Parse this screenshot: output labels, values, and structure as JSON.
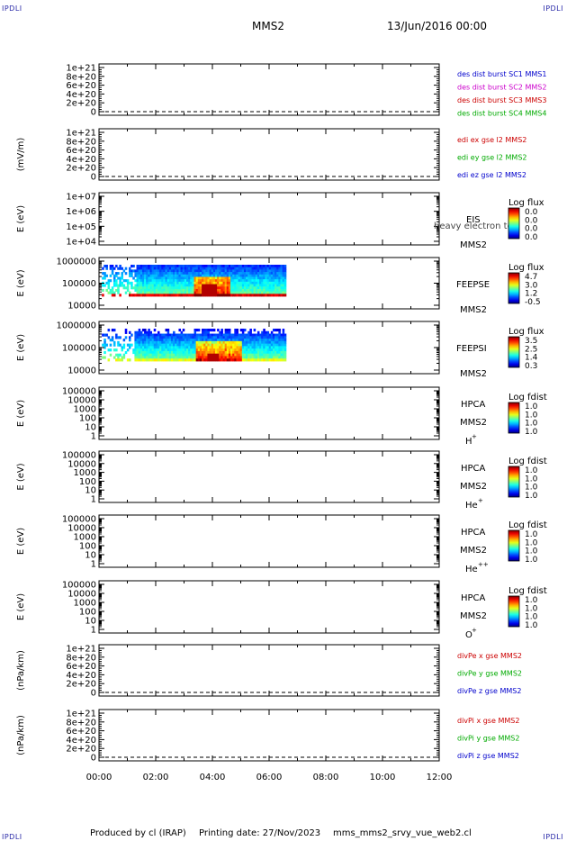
{
  "header": {
    "corner_label": "IPDLI",
    "mission": "MMS2",
    "datetime": "13/Jun/2016 00:00"
  },
  "footer": {
    "produced_by": "Produced by cl (IRAP)",
    "printing_date": "Printing date: 27/Nov/2023",
    "script_name": "mms_mms2_srvy_vue_web2.cl"
  },
  "chart_data": [
    {
      "type": "line",
      "ylabel": "",
      "ticks": [
        "1e+21",
        "8e+20",
        "6e+20",
        "4e+20",
        "2e+20",
        "0"
      ],
      "ylim": [
        0,
        1e+21
      ],
      "legend": [
        {
          "name": "des dist burst SC1 MMS1",
          "color": "#0000cc"
        },
        {
          "name": "des dist burst SC2 MMS2",
          "color": "#cc00cc"
        },
        {
          "name": "des dist burst SC3 MMS3",
          "color": "#cc0000"
        },
        {
          "name": "des dist burst SC4 MMS4",
          "color": "#00aa00"
        }
      ]
    },
    {
      "type": "line",
      "ylabel": "(mV/m)",
      "ticks": [
        "1e+21",
        "8e+20",
        "6e+20",
        "4e+20",
        "2e+20",
        "0"
      ],
      "ylim": [
        0,
        1e+21
      ],
      "legend": [
        {
          "name": "edi ex gse l2 MMS2",
          "color": "#cc0000"
        },
        {
          "name": "edi ey gse l2 MMS2",
          "color": "#00aa00"
        },
        {
          "name": "edi ez gse l2 MMS2",
          "color": "#0000cc"
        }
      ]
    },
    {
      "type": "heatmap",
      "ylabel": "E (eV)",
      "ticks": [
        "1e+07",
        "1e+06",
        "1e+05",
        "1e+04"
      ],
      "ylim": [
        10000,
        10000000
      ],
      "scale": "log",
      "instrument": "EIS",
      "overlay_text": "heavy electron to",
      "spacecraft": "MMS2",
      "colorbar_title": "Log flux",
      "colorbar_ticks": [
        "0.0",
        "0.0",
        "0.0",
        "0.0"
      ]
    },
    {
      "type": "heatmap",
      "ylabel": "E (eV)",
      "ticks": [
        "1000000",
        "100000",
        "10000"
      ],
      "ylim": [
        10000,
        1000000
      ],
      "scale": "log",
      "instrument": "FEEPSE",
      "spacecraft": "MMS2",
      "colorbar_title": "Log flux",
      "colorbar_ticks": [
        "4.7",
        "3.0",
        "1.2",
        "-0.5"
      ],
      "data_extent_hours": [
        0.1,
        6.6
      ]
    },
    {
      "type": "heatmap",
      "ylabel": "E (eV)",
      "ticks": [
        "1000000",
        "100000",
        "10000"
      ],
      "ylim": [
        10000,
        1000000
      ],
      "scale": "log",
      "instrument": "FEEPSI",
      "spacecraft": "MMS2",
      "colorbar_title": "Log flux",
      "colorbar_ticks": [
        "3.5",
        "2.5",
        "1.4",
        "0.3"
      ],
      "data_extent_hours": [
        0.1,
        6.6
      ]
    },
    {
      "type": "heatmap",
      "ylabel": "E (eV)",
      "ticks": [
        "100000",
        "10000",
        "1000",
        "100",
        "10",
        "1"
      ],
      "ylim": [
        1,
        100000
      ],
      "scale": "log",
      "instrument": "HPCA",
      "spacecraft": "MMS2",
      "species": "H",
      "species_sup": "+",
      "colorbar_title": "Log fdist",
      "colorbar_ticks": [
        "1.0",
        "1.0",
        "1.0",
        "1.0"
      ]
    },
    {
      "type": "heatmap",
      "ylabel": "E (eV)",
      "ticks": [
        "100000",
        "10000",
        "1000",
        "100",
        "10",
        "1"
      ],
      "ylim": [
        1,
        100000
      ],
      "scale": "log",
      "instrument": "HPCA",
      "spacecraft": "MMS2",
      "species": "He",
      "species_sup": "+",
      "colorbar_title": "Log fdist",
      "colorbar_ticks": [
        "1.0",
        "1.0",
        "1.0",
        "1.0"
      ]
    },
    {
      "type": "heatmap",
      "ylabel": "E (eV)",
      "ticks": [
        "100000",
        "10000",
        "1000",
        "100",
        "10",
        "1"
      ],
      "ylim": [
        1,
        100000
      ],
      "scale": "log",
      "instrument": "HPCA",
      "spacecraft": "MMS2",
      "species": "He",
      "species_sup": "++",
      "colorbar_title": "Log fdist",
      "colorbar_ticks": [
        "1.0",
        "1.0",
        "1.0",
        "1.0"
      ]
    },
    {
      "type": "heatmap",
      "ylabel": "E (eV)",
      "ticks": [
        "100000",
        "10000",
        "1000",
        "100",
        "10",
        "1"
      ],
      "ylim": [
        1,
        100000
      ],
      "scale": "log",
      "instrument": "HPCA",
      "spacecraft": "MMS2",
      "species": "O",
      "species_sup": "+",
      "colorbar_title": "Log fdist",
      "colorbar_ticks": [
        "1.0",
        "1.0",
        "1.0",
        "1.0"
      ]
    },
    {
      "type": "line",
      "ylabel": "(nPa/km)",
      "ticks": [
        "1e+21",
        "8e+20",
        "6e+20",
        "4e+20",
        "2e+20",
        "0"
      ],
      "ylim": [
        0,
        1e+21
      ],
      "legend": [
        {
          "name": "divPe x gse MMS2",
          "color": "#cc0000"
        },
        {
          "name": "divPe y gse MMS2",
          "color": "#00aa00"
        },
        {
          "name": "divPe z gse MMS2",
          "color": "#0000cc"
        }
      ]
    },
    {
      "type": "line",
      "ylabel": "(nPa/km)",
      "ticks": [
        "1e+21",
        "8e+20",
        "6e+20",
        "4e+20",
        "2e+20",
        "0"
      ],
      "ylim": [
        0,
        1e+21
      ],
      "legend": [
        {
          "name": "divPi x gse MMS2",
          "color": "#cc0000"
        },
        {
          "name": "divPi y gse MMS2",
          "color": "#00aa00"
        },
        {
          "name": "divPi z gse MMS2",
          "color": "#0000cc"
        }
      ]
    }
  ],
  "x_axis": {
    "ticks": [
      "00:00",
      "02:00",
      "04:00",
      "06:00",
      "08:00",
      "10:00",
      "12:00"
    ],
    "xlim_hours": [
      0,
      12
    ]
  }
}
